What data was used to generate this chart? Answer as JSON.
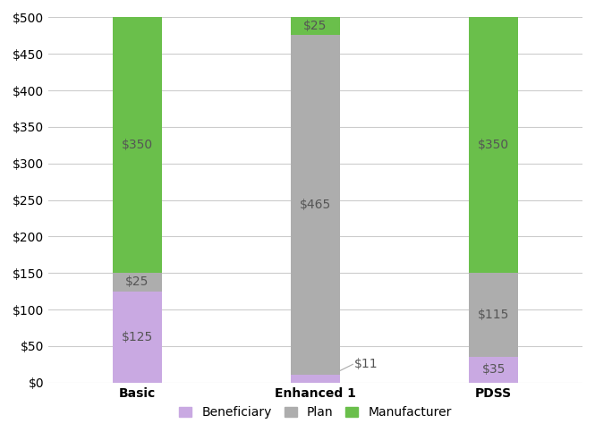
{
  "categories": [
    "Basic",
    "Enhanced 1",
    "PDSS"
  ],
  "beneficiary": [
    125,
    11,
    35
  ],
  "plan": [
    25,
    465,
    115
  ],
  "manufacturer": [
    350,
    25,
    350
  ],
  "beneficiary_color": "#c9a9e2",
  "plan_color": "#adadad",
  "manufacturer_color": "#6abf4b",
  "ylim": [
    0,
    500
  ],
  "yticks": [
    0,
    50,
    100,
    150,
    200,
    250,
    300,
    350,
    400,
    450,
    500
  ],
  "ytick_labels": [
    "$0",
    "$50",
    "$100",
    "$150",
    "$200",
    "$250",
    "$300",
    "$350",
    "$400",
    "$450",
    "$500"
  ],
  "bar_width": 0.28,
  "legend_labels": [
    "Beneficiary",
    "Plan",
    "Manufacturer"
  ],
  "label_fontsize": 10,
  "tick_fontsize": 10,
  "legend_fontsize": 10,
  "background_color": "#ffffff",
  "grid_color": "#cccccc",
  "text_color": "#555555",
  "x_positions": [
    0,
    1,
    2
  ],
  "enhanced1_idx": 1
}
